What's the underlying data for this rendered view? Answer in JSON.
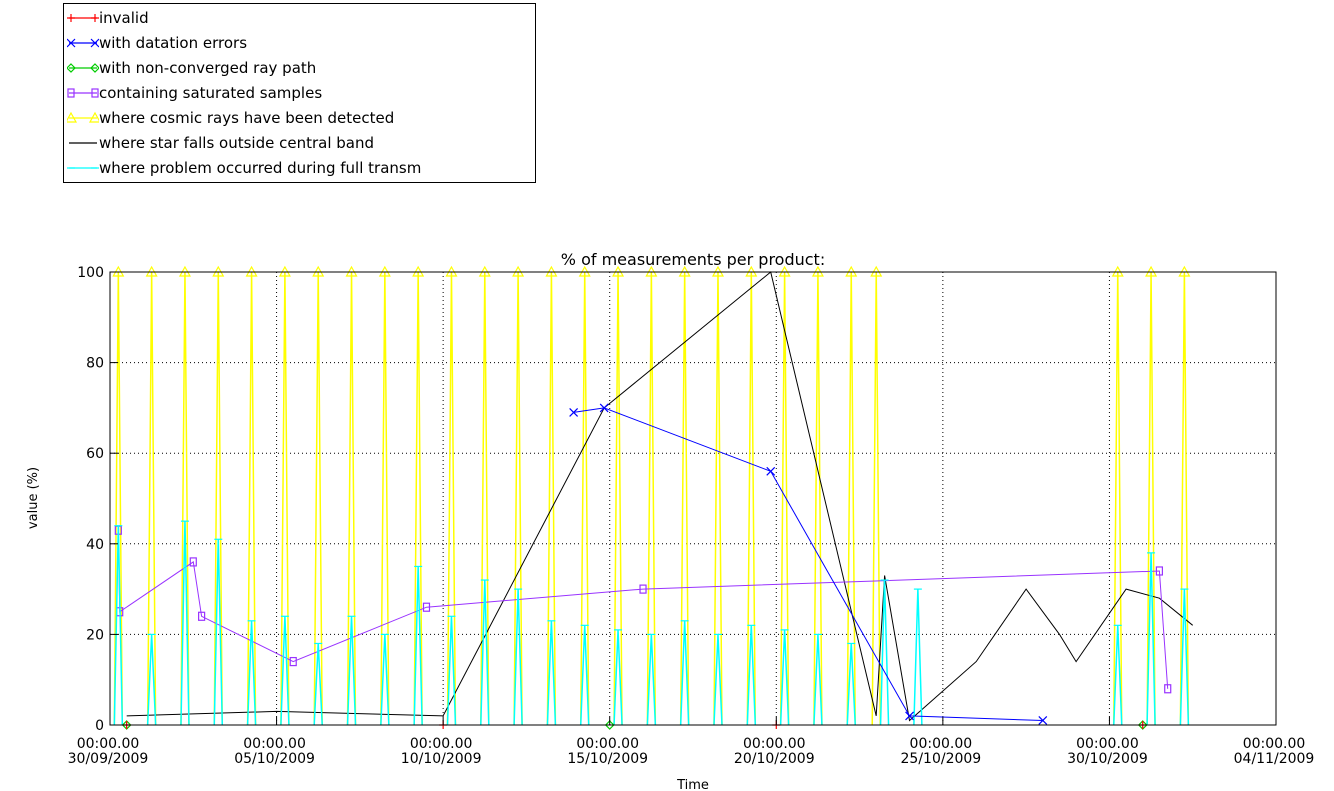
{
  "chart_data": {
    "type": "line",
    "title": "% of measurements per product:",
    "xlabel": "Time",
    "ylabel": "value (%)",
    "ylim": [
      0,
      100
    ],
    "xlim": [
      "2009-09-30",
      "2009-11-04"
    ],
    "grid": true,
    "legend_position": "top-left, above plot",
    "x_ticks": [
      {
        "time": "00:00.00",
        "date": "30/09/2009"
      },
      {
        "time": "00:00.00",
        "date": "05/10/2009"
      },
      {
        "time": "00:00.00",
        "date": "10/10/2009"
      },
      {
        "time": "00:00.00",
        "date": "15/10/2009"
      },
      {
        "time": "00:00.00",
        "date": "20/10/2009"
      },
      {
        "time": "00:00.00",
        "date": "25/10/2009"
      },
      {
        "time": "00:00.00",
        "date": "30/10/2009"
      },
      {
        "time": "00:00.00",
        "date": "04/11/2009"
      }
    ],
    "y_ticks": [
      "0",
      "20",
      "40",
      "60",
      "80",
      "100"
    ],
    "series": [
      {
        "name": "invalid",
        "color": "#ff0000",
        "marker": "plus",
        "x": [
          "2009-09-30 12:00",
          "2009-10-10",
          "2009-10-20",
          "2009-10-31"
        ],
        "values": [
          0,
          0,
          0,
          0
        ]
      },
      {
        "name": "with datation errors",
        "color": "#0000ff",
        "marker": "x",
        "x": [
          "2009-10-13 22:00",
          "2009-10-14 20:00",
          "2009-10-19 20:00",
          "2009-10-24",
          "2009-10-28"
        ],
        "values": [
          69,
          70,
          56,
          2,
          1
        ]
      },
      {
        "name": "with non-converged ray path",
        "color": "#00cc00",
        "marker": "diamond",
        "x": [
          "2009-09-30 12:00",
          "2009-10-15",
          "2009-10-31"
        ],
        "values": [
          0,
          0,
          0
        ]
      },
      {
        "name": "containing saturated samples",
        "color": "#9933ff",
        "marker": "square",
        "x": [
          "2009-09-30 06:00",
          "2009-09-30 07:00",
          "2009-10-02 12:00",
          "2009-10-02 18:00",
          "2009-10-05 12:00",
          "2009-10-09 12:00",
          "2009-10-16",
          "2009-10-31 12:00",
          "2009-10-31 18:00"
        ],
        "values": [
          43,
          25,
          36,
          24,
          14,
          26,
          30,
          34,
          8
        ]
      },
      {
        "name": "where cosmic rays have been detected",
        "color": "#ffff00",
        "marker": "triangle",
        "x": [
          "2009-09-30 06:00",
          "2009-10-01 06:00",
          "2009-10-02 06:00",
          "2009-10-03 06:00",
          "2009-10-04 06:00",
          "2009-10-05 06:00",
          "2009-10-06 06:00",
          "2009-10-07 06:00",
          "2009-10-08 06:00",
          "2009-10-09 06:00",
          "2009-10-10 06:00",
          "2009-10-11 06:00",
          "2009-10-12 06:00",
          "2009-10-13 06:00",
          "2009-10-14 06:00",
          "2009-10-15 06:00",
          "2009-10-16 06:00",
          "2009-10-17 06:00",
          "2009-10-18 06:00",
          "2009-10-19 06:00",
          "2009-10-20 06:00",
          "2009-10-21 06:00",
          "2009-10-22 06:00",
          "2009-10-23",
          "2009-10-30 06:00",
          "2009-10-31 06:00",
          "2009-11-01 06:00"
        ],
        "values": [
          100,
          100,
          100,
          100,
          100,
          100,
          100,
          100,
          100,
          100,
          100,
          100,
          100,
          100,
          100,
          100,
          100,
          100,
          100,
          100,
          100,
          100,
          100,
          100,
          100,
          100,
          100
        ]
      },
      {
        "name": "where star falls outside central band",
        "color": "#000000",
        "marker": "none",
        "x": [
          "2009-09-30 12:00",
          "2009-10-05",
          "2009-10-10",
          "2009-10-14 20:00",
          "2009-10-19 20:00",
          "2009-10-23",
          "2009-10-23 06:00",
          "2009-10-24",
          "2009-10-26",
          "2009-10-27 12:00",
          "2009-10-28 12:00",
          "2009-10-29",
          "2009-10-30 12:00",
          "2009-10-31 12:00",
          "2009-11-01 12:00"
        ],
        "values": [
          2,
          3,
          2,
          70,
          100,
          2,
          33,
          1,
          14,
          30,
          20,
          14,
          30,
          28,
          22
        ]
      },
      {
        "name": "where problem occurred during full transm",
        "color": "#00ffff",
        "marker": "bar",
        "x": [
          "2009-09-30 06:00",
          "2009-10-01 06:00",
          "2009-10-02 06:00",
          "2009-10-03 06:00",
          "2009-10-04 06:00",
          "2009-10-05 06:00",
          "2009-10-06 06:00",
          "2009-10-07 06:00",
          "2009-10-08 06:00",
          "2009-10-09 06:00",
          "2009-10-10 06:00",
          "2009-10-11 06:00",
          "2009-10-12 06:00",
          "2009-10-13 06:00",
          "2009-10-14 06:00",
          "2009-10-15 06:00",
          "2009-10-16 06:00",
          "2009-10-17 06:00",
          "2009-10-18 06:00",
          "2009-10-19 06:00",
          "2009-10-20 06:00",
          "2009-10-21 06:00",
          "2009-10-22 06:00",
          "2009-10-23 06:00",
          "2009-10-24 06:00",
          "2009-10-30 06:00",
          "2009-10-31 06:00",
          "2009-11-01 06:00"
        ],
        "values": [
          44,
          20,
          45,
          41,
          23,
          24,
          18,
          24,
          20,
          35,
          24,
          32,
          30,
          23,
          22,
          21,
          20,
          23,
          20,
          22,
          21,
          20,
          18,
          32,
          30,
          22,
          38,
          30
        ]
      }
    ]
  }
}
